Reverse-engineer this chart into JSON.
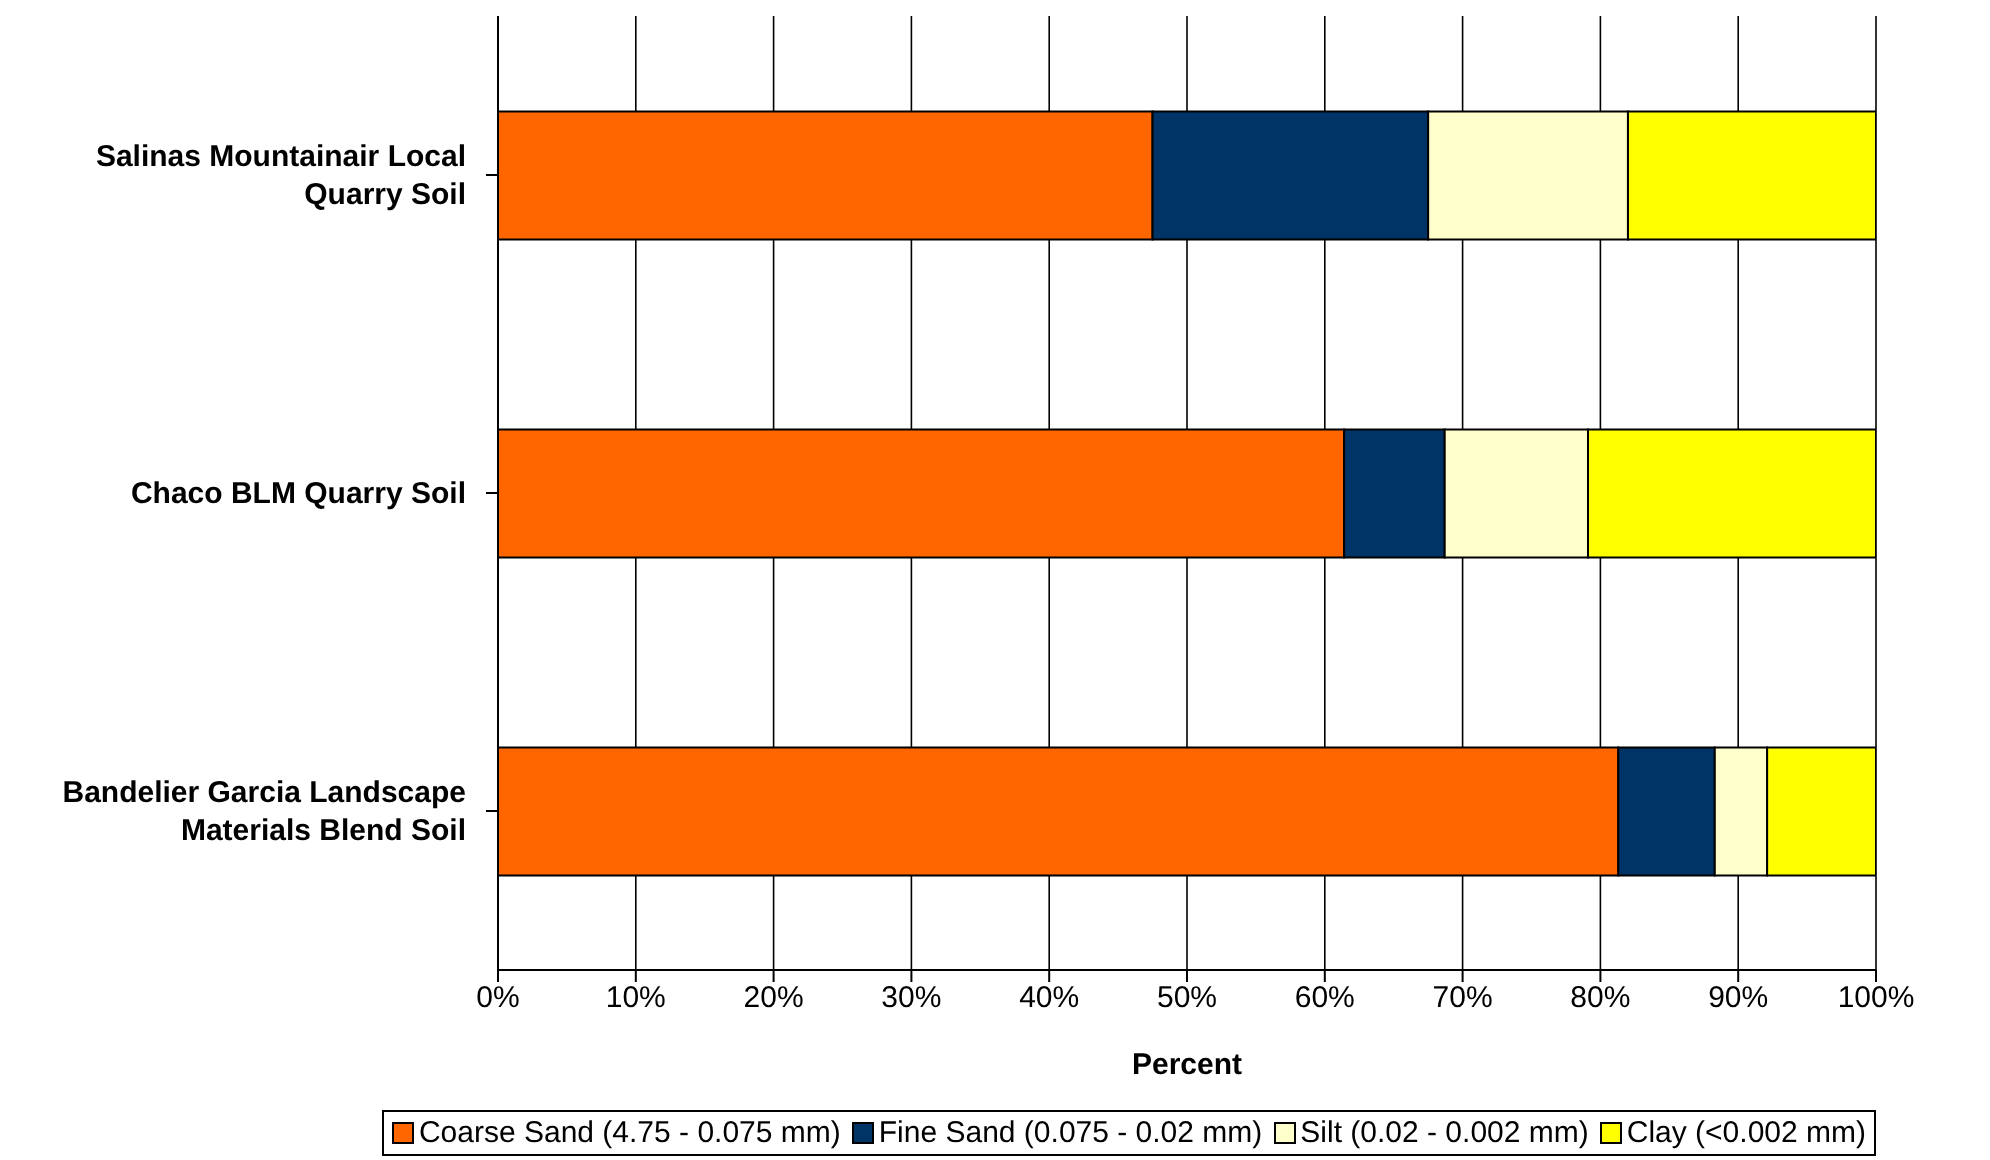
{
  "chart_data": {
    "type": "bar",
    "orientation": "horizontal",
    "stacked": true,
    "xlabel": "Percent",
    "categories": [
      "Salinas Mountainair Local Quarry Soil",
      "Chaco BLM Quarry Soil",
      "Bandelier Garcia Landscape Materials Blend Soil"
    ],
    "series": [
      {
        "name": "Coarse Sand (4.75 - 0.075 mm)",
        "color": "#ff6600",
        "values": [
          47.5,
          61.4,
          81.3
        ]
      },
      {
        "name": "Fine Sand (0.075 - 0.02 mm)",
        "color": "#003366",
        "values": [
          20,
          7.3,
          7
        ]
      },
      {
        "name": "Silt (0.02 - 0.002 mm)",
        "color": "#ffffcc",
        "values": [
          14.5,
          10.4,
          3.8
        ]
      },
      {
        "name": "Clay (<0.002 mm)",
        "color": "#ffff00",
        "values": [
          18,
          20.9,
          7.9
        ]
      }
    ],
    "xlim": [
      0,
      100
    ],
    "xticks": [
      {
        "value": 0,
        "label": "0%"
      },
      {
        "value": 10,
        "label": "10%"
      },
      {
        "value": 20,
        "label": "20%"
      },
      {
        "value": 30,
        "label": "30%"
      },
      {
        "value": 40,
        "label": "40%"
      },
      {
        "value": 50,
        "label": "50%"
      },
      {
        "value": 60,
        "label": "60%"
      },
      {
        "value": 70,
        "label": "70%"
      },
      {
        "value": 80,
        "label": "80%"
      },
      {
        "value": 90,
        "label": "90%"
      },
      {
        "value": 100,
        "label": "100%"
      }
    ],
    "grid": "x",
    "legend": "bottom"
  }
}
